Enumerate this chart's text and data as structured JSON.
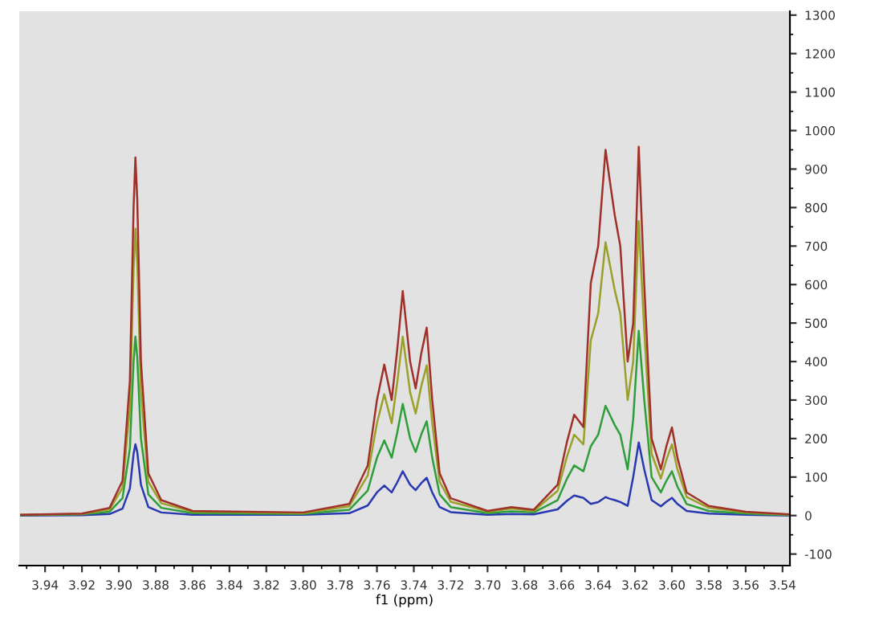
{
  "chart_data": {
    "type": "line",
    "xlabel": "f1 (ppm)",
    "x": [
      3.953,
      3.92,
      3.905,
      3.898,
      3.894,
      3.892,
      3.891,
      3.89,
      3.888,
      3.884,
      3.877,
      3.86,
      3.8,
      3.775,
      3.765,
      3.76,
      3.756,
      3.752,
      3.749,
      3.746,
      3.742,
      3.739,
      3.736,
      3.733,
      3.73,
      3.726,
      3.72,
      3.7,
      3.687,
      3.675,
      3.662,
      3.657,
      3.653,
      3.648,
      3.644,
      3.64,
      3.636,
      3.634,
      3.631,
      3.628,
      3.624,
      3.621,
      3.618,
      3.615,
      3.611,
      3.606,
      3.603,
      3.6,
      3.597,
      3.592,
      3.58,
      3.56,
      3.536
    ],
    "series": [
      {
        "color": "#2838b0",
        "values": [
          0,
          1,
          4,
          18,
          70,
          160,
          185,
          165,
          80,
          22,
          8,
          2,
          2,
          6,
          26,
          60,
          78,
          60,
          86,
          115,
          80,
          66,
          84,
          98,
          60,
          22,
          9,
          2,
          4,
          3,
          16,
          38,
          52,
          46,
          30,
          35,
          48,
          44,
          40,
          35,
          25,
          100,
          190,
          120,
          40,
          24,
          36,
          46,
          30,
          12,
          5,
          2,
          0
        ]
      },
      {
        "color": "#2e9e3a",
        "values": [
          1,
          3,
          10,
          45,
          175,
          400,
          465,
          410,
          200,
          55,
          20,
          6,
          4,
          15,
          65,
          150,
          195,
          150,
          215,
          290,
          200,
          165,
          210,
          245,
          150,
          55,
          22,
          6,
          11,
          8,
          40,
          95,
          130,
          115,
          180,
          210,
          285,
          265,
          235,
          210,
          120,
          250,
          480,
          300,
          100,
          60,
          90,
          115,
          75,
          30,
          12,
          5,
          1
        ]
      },
      {
        "color": "#9aa028",
        "values": [
          2,
          4,
          16,
          72,
          280,
          640,
          745,
          655,
          320,
          88,
          32,
          10,
          6,
          24,
          104,
          240,
          315,
          240,
          345,
          465,
          320,
          265,
          335,
          390,
          240,
          88,
          36,
          10,
          18,
          12,
          64,
          152,
          210,
          185,
          455,
          525,
          710,
          660,
          585,
          525,
          300,
          400,
          765,
          480,
          160,
          96,
          145,
          185,
          120,
          48,
          20,
          8,
          2
        ]
      },
      {
        "color": "#a0302a",
        "values": [
          2,
          5,
          20,
          90,
          350,
          800,
          930,
          820,
          400,
          110,
          40,
          12,
          8,
          30,
          130,
          300,
          392,
          300,
          430,
          583,
          400,
          330,
          420,
          488,
          300,
          110,
          45,
          12,
          22,
          15,
          80,
          190,
          262,
          230,
          604,
          700,
          950,
          880,
          780,
          700,
          400,
          500,
          958,
          600,
          200,
          120,
          180,
          229,
          150,
          60,
          25,
          10,
          3
        ]
      }
    ],
    "xlim": [
      3.954,
      3.536
    ],
    "xticks": [
      3.94,
      3.92,
      {
        "value": 3.9,
        "label": "3.90"
      },
      3.88,
      3.86,
      3.84,
      3.82,
      {
        "value": 3.8,
        "label": "3.80"
      },
      3.78,
      3.76,
      3.74,
      3.72,
      {
        "value": 3.7,
        "label": "3.70"
      },
      3.68,
      3.66,
      3.64,
      3.62,
      {
        "value": 3.6,
        "label": "3.60"
      },
      3.58,
      3.56,
      3.54
    ],
    "ylim": [
      -130,
      1310
    ],
    "yticks": [
      -100,
      0,
      100,
      200,
      300,
      400,
      500,
      600,
      700,
      800,
      900,
      1000,
      1100,
      1200,
      1300
    ],
    "grid": false,
    "legend": false,
    "marker": "none",
    "line_style": "solid"
  }
}
